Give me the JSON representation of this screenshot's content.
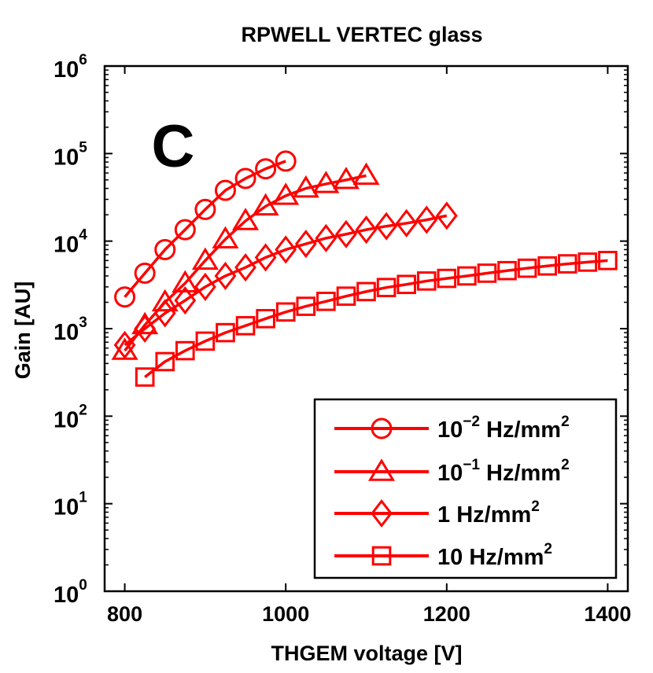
{
  "chart_data": {
    "type": "line",
    "title": "RPWELL VERTEC glass",
    "panel_label": "C",
    "xlabel": "THGEM voltage [V]",
    "ylabel": "Gain [AU]",
    "xlim": [
      775,
      1425
    ],
    "ylim": [
      1,
      1000000
    ],
    "yscale": "log",
    "xticks": [
      800,
      1000,
      1200,
      1400
    ],
    "yticks": [
      {
        "value": 1,
        "base": "10",
        "exp": "0"
      },
      {
        "value": 10,
        "base": "10",
        "exp": "1"
      },
      {
        "value": 100,
        "base": "10",
        "exp": "2"
      },
      {
        "value": 1000,
        "base": "10",
        "exp": "3"
      },
      {
        "value": 10000,
        "base": "10",
        "exp": "4"
      },
      {
        "value": 100000,
        "base": "10",
        "exp": "5"
      },
      {
        "value": 1000000,
        "base": "10",
        "exp": "6"
      }
    ],
    "grid": false,
    "legend_position": "bottom-right",
    "color": "#ff0000",
    "series": [
      {
        "name": "10^-2 Hz/mm^2",
        "label_base": "10",
        "label_exp": "−2",
        "label_unit": " Hz/mm",
        "label_unit_exp": "2",
        "marker": "circle",
        "x": [
          800,
          825,
          850,
          875,
          900,
          925,
          950,
          975,
          1000
        ],
        "y": [
          2300,
          4300,
          8000,
          13500,
          23000,
          38000,
          52000,
          67000,
          82000
        ]
      },
      {
        "name": "10^-1 Hz/mm^2",
        "label_base": "10",
        "label_exp": "−1",
        "label_unit": " Hz/mm",
        "label_unit_exp": "2",
        "marker": "triangle",
        "x": [
          800,
          825,
          850,
          875,
          900,
          925,
          950,
          975,
          1000,
          1025,
          1050,
          1075,
          1100
        ],
        "y": [
          560,
          1100,
          2000,
          3300,
          6000,
          10500,
          17000,
          25000,
          33000,
          40000,
          45000,
          50000,
          56000
        ]
      },
      {
        "name": "1 Hz/mm^2",
        "label_base": "1",
        "label_exp": "",
        "label_unit": " Hz/mm",
        "label_unit_exp": "2",
        "marker": "diamond",
        "x": [
          800,
          825,
          850,
          875,
          900,
          925,
          950,
          975,
          1000,
          1025,
          1050,
          1075,
          1100,
          1125,
          1150,
          1175,
          1200
        ],
        "y": [
          650,
          1000,
          1500,
          2100,
          3000,
          4000,
          5000,
          6500,
          8000,
          9300,
          10800,
          12000,
          13500,
          14800,
          16000,
          17500,
          19500
        ]
      },
      {
        "name": "10 Hz/mm^2",
        "label_base": "10",
        "label_exp": "",
        "label_unit": " Hz/mm",
        "label_unit_exp": "2",
        "marker": "square",
        "x": [
          825,
          850,
          875,
          900,
          925,
          950,
          975,
          1000,
          1025,
          1050,
          1075,
          1100,
          1125,
          1150,
          1175,
          1200,
          1225,
          1250,
          1275,
          1300,
          1325,
          1350,
          1375,
          1400
        ],
        "y": [
          280,
          420,
          560,
          720,
          900,
          1080,
          1300,
          1550,
          1800,
          2050,
          2350,
          2650,
          2950,
          3200,
          3500,
          3750,
          4000,
          4300,
          4600,
          4900,
          5200,
          5500,
          5750,
          6000
        ]
      }
    ]
  }
}
